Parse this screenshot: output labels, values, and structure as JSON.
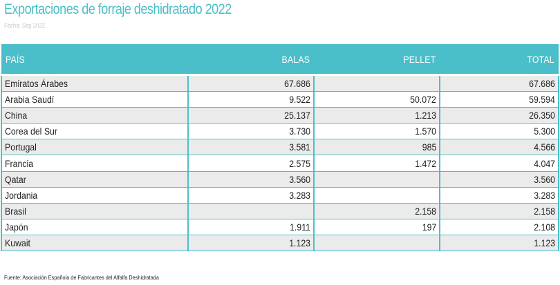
{
  "title": "Exportaciones de forraje deshidratado 2022",
  "date": "Fecha: Sep 2022",
  "headers": {
    "country": "PAÍS",
    "balas": "BALAS",
    "pellet": "PELLET",
    "total": "TOTAL"
  },
  "rows": [
    {
      "country": "Emiratos Árabes",
      "balas": "67.686",
      "pellet": "",
      "total": "67.686"
    },
    {
      "country": "Arabia Saudí",
      "balas": "9.522",
      "pellet": "50.072",
      "total": "59.594"
    },
    {
      "country": "China",
      "balas": "25.137",
      "pellet": "1.213",
      "total": "26.350"
    },
    {
      "country": "Corea del Sur",
      "balas": "3.730",
      "pellet": "1.570",
      "total": "5.300"
    },
    {
      "country": "Portugal",
      "balas": "3.581",
      "pellet": "985",
      "total": "4.566"
    },
    {
      "country": "Francia",
      "balas": "2.575",
      "pellet": "1.472",
      "total": "4.047"
    },
    {
      "country": "Qatar",
      "balas": "3.560",
      "pellet": "",
      "total": "3.560"
    },
    {
      "country": "Jordania",
      "balas": "3.283",
      "pellet": "",
      "total": "3.283"
    },
    {
      "country": "Brasil",
      "balas": "",
      "pellet": "2.158",
      "total": "2.158"
    },
    {
      "country": "Japón",
      "balas": "1.911",
      "pellet": "197",
      "total": "2.108"
    },
    {
      "country": "Kuwait",
      "balas": "1.123",
      "pellet": "",
      "total": "1.123"
    }
  ],
  "source": "Fuente: Asociación Española de Fabricantes del Alfalfa Deshidratada",
  "colors": {
    "accent": "#4bbfc9",
    "row_alt": "#ebebeb"
  }
}
